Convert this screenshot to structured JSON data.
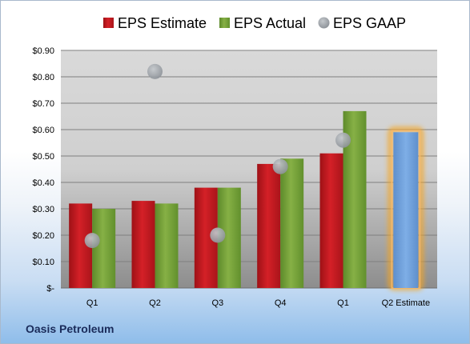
{
  "company_name": "Oasis Petroleum",
  "chart_data": {
    "type": "bar",
    "title": "",
    "xlabel": "",
    "ylabel": "",
    "categories": [
      "Q1",
      "Q2",
      "Q3",
      "Q4",
      "Q1",
      "Q2 Estimate"
    ],
    "series": [
      {
        "name": "EPS Estimate",
        "type": "bar",
        "color": "#c8181e",
        "values": [
          0.32,
          0.33,
          0.38,
          0.47,
          0.51,
          null
        ]
      },
      {
        "name": "EPS Actual",
        "type": "bar",
        "color": "#77a13a",
        "values": [
          0.3,
          0.32,
          0.38,
          0.49,
          0.67,
          null
        ]
      },
      {
        "name": "EPS GAAP",
        "type": "scatter",
        "color": "#9ea3a8",
        "values": [
          0.18,
          0.82,
          0.2,
          0.46,
          0.56,
          null
        ]
      }
    ],
    "projection": {
      "category": "Q2 Estimate",
      "value": 0.59,
      "color": "#6f9fd8",
      "glow_color": "#f5a623"
    },
    "ylim": [
      0,
      0.9
    ],
    "yticks": [
      {
        "value": 0,
        "label": "$-"
      },
      {
        "value": 0.1,
        "label": "$0.10"
      },
      {
        "value": 0.2,
        "label": "$0.20"
      },
      {
        "value": 0.3,
        "label": "$0.30"
      },
      {
        "value": 0.4,
        "label": "$0.40"
      },
      {
        "value": 0.5,
        "label": "$0.50"
      },
      {
        "value": 0.6,
        "label": "$0.60"
      },
      {
        "value": 0.7,
        "label": "$0.70"
      },
      {
        "value": 0.8,
        "label": "$0.80"
      },
      {
        "value": 0.9,
        "label": "$0.90"
      }
    ],
    "grid": true,
    "legend_position": "top"
  }
}
